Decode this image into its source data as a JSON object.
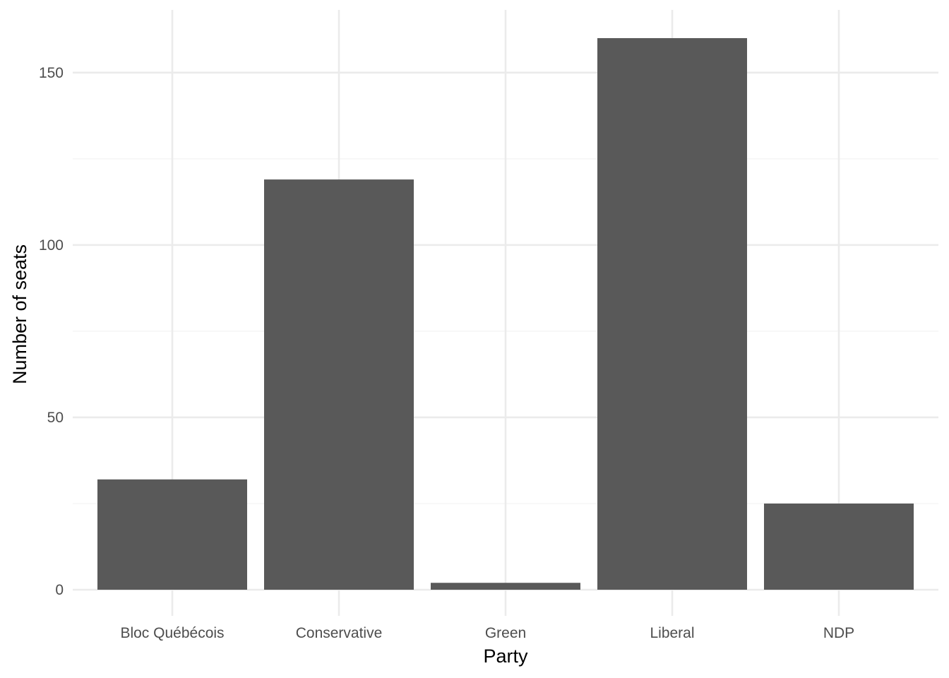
{
  "chart_data": {
    "type": "bar",
    "title": "",
    "xlabel": "Party",
    "ylabel": "Number of seats",
    "categories": [
      "Bloc Québécois",
      "Conservative",
      "Green",
      "Liberal",
      "NDP"
    ],
    "values": [
      32,
      119,
      2,
      160,
      25
    ],
    "ylim": [
      0,
      168
    ],
    "yticks": [
      0,
      50,
      100,
      150
    ],
    "grid": true,
    "legend": "none",
    "bar_color": "#595959",
    "grid_major_color": "#ebebeb",
    "grid_minor_color": "#f3f3f3"
  }
}
